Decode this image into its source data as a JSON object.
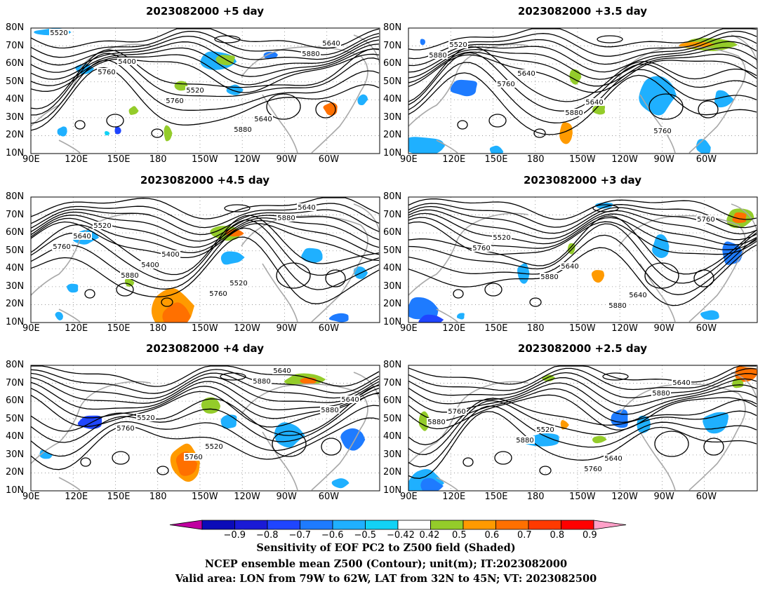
{
  "panels": [
    {
      "title": "2023082000 +5 day",
      "contours": [
        "5520",
        "5400",
        "5520",
        "5640",
        "5640",
        "5760",
        "5760",
        "5880",
        "5880"
      ]
    },
    {
      "title": "2023082000 +3.5 day",
      "contours": [
        "5520",
        "5640",
        "5640",
        "5760",
        "5880",
        "5760",
        "5880"
      ]
    },
    {
      "title": "2023082000 +4.5 day",
      "contours": [
        "5520",
        "5400",
        "5520",
        "5640",
        "5640",
        "5400",
        "5760",
        "5880",
        "5760",
        "5880"
      ]
    },
    {
      "title": "2023082000 +3 day",
      "contours": [
        "5520",
        "5640",
        "5640",
        "5760",
        "5760",
        "5880",
        "5880"
      ]
    },
    {
      "title": "2023082000 +4 day",
      "contours": [
        "5520",
        "5520",
        "5640",
        "5640",
        "5760",
        "5760",
        "5880",
        "5880"
      ]
    },
    {
      "title": "2023082000 +2.5 day",
      "contours": [
        "5520",
        "5640",
        "5640",
        "5760",
        "5880",
        "5760",
        "5880",
        "5880"
      ]
    }
  ],
  "lat_ticks": [
    "80N",
    "70N",
    "60N",
    "50N",
    "40N",
    "30N",
    "20N",
    "10N"
  ],
  "lon_ticks": [
    "90E",
    "120E",
    "150E",
    "180",
    "150W",
    "120W",
    "90W",
    "60W"
  ],
  "colorbar": {
    "labels": [
      "−0.9",
      "−0.8",
      "−0.7",
      "−0.6",
      "−0.5",
      "−0.42",
      "0.42",
      "0.5",
      "0.6",
      "0.7",
      "0.8",
      "0.9"
    ],
    "colors": [
      "#0b0bb8",
      "#1a1ad6",
      "#1f45ff",
      "#1e7bff",
      "#1fb0ff",
      "#12d2f5",
      "#ffffff",
      "#94cc2a",
      "#ff9a00",
      "#ff7000",
      "#ff3a00",
      "#ff0000"
    ],
    "left_end": "#c000a0",
    "right_end": "#ffa0c8"
  },
  "footer": [
    "Sensitivity of EOF PC2 to Z500 field (Shaded)",
    "NCEP ensemble mean Z500 (Contour); unit(m); IT:2023082000",
    "Valid area: LON from 79W to 62W, LAT from 32N to 45N; VT: 2023082500"
  ]
}
